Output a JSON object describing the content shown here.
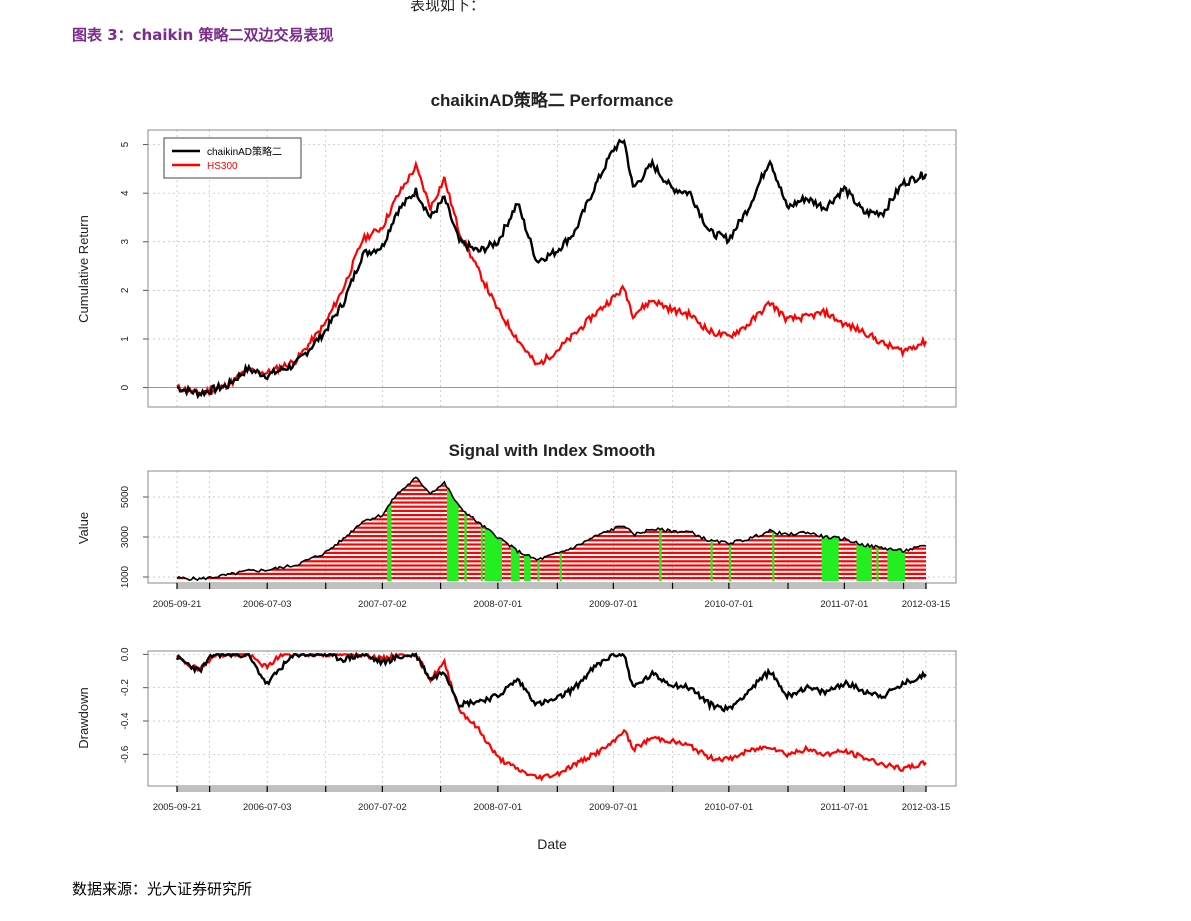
{
  "document": {
    "top_fragment": "表现如下：",
    "figure_caption": "图表 3：chaikin 策略二双边交易表现",
    "source_note": "数据来源：光大证券研究所"
  },
  "colors": {
    "strategy": "#000000",
    "index": "#ff0000",
    "signal_long": "#ff0000",
    "signal_short": "#22ee22",
    "grid": "#bbbbbb",
    "frame": "#888888",
    "date_band": "#c0c0c0"
  },
  "chart_data": [
    {
      "type": "line",
      "title": "chaikinAD策略二 Performance",
      "ylabel": "Cumulative Return",
      "xlabel": "",
      "ylim": [
        -0.4,
        5.3
      ],
      "yticks": [
        "0",
        "1",
        "2",
        "3",
        "4",
        "5"
      ],
      "legend_placement": "top-left",
      "grid": true,
      "x": [
        "2005-09-21",
        "2005-12-01",
        "2006-03-01",
        "2006-05-01",
        "2006-07-03",
        "2006-10-01",
        "2007-01-01",
        "2007-03-01",
        "2007-05-01",
        "2007-07-02",
        "2007-08-15",
        "2007-10-16",
        "2007-12-01",
        "2008-01-14",
        "2008-03-01",
        "2008-05-01",
        "2008-07-01",
        "2008-09-01",
        "2008-11-01",
        "2009-01-01",
        "2009-03-01",
        "2009-05-01",
        "2009-07-01",
        "2009-08-04",
        "2009-09-01",
        "2009-11-01",
        "2010-01-01",
        "2010-03-01",
        "2010-05-01",
        "2010-07-01",
        "2010-09-01",
        "2010-11-08",
        "2011-01-01",
        "2011-03-01",
        "2011-05-01",
        "2011-07-01",
        "2011-09-01",
        "2011-11-01",
        "2012-01-01",
        "2012-03-15"
      ],
      "series": [
        {
          "name": "chaikinAD策略二",
          "values": [
            0.0,
            -0.12,
            0.05,
            0.38,
            0.25,
            0.48,
            1.15,
            1.75,
            2.75,
            2.9,
            3.6,
            4.05,
            3.5,
            3.9,
            3.0,
            2.8,
            3.0,
            3.8,
            2.6,
            2.8,
            3.2,
            4.1,
            4.9,
            5.1,
            4.1,
            4.6,
            4.1,
            4.0,
            3.2,
            3.05,
            3.7,
            4.7,
            3.7,
            3.9,
            3.7,
            4.1,
            3.6,
            3.6,
            4.2,
            4.4
          ]
        },
        {
          "name": "HS300",
          "values": [
            0.0,
            -0.12,
            0.05,
            0.36,
            0.3,
            0.55,
            1.3,
            2.05,
            3.05,
            3.3,
            3.9,
            4.55,
            3.7,
            4.3,
            3.2,
            2.4,
            1.6,
            1.0,
            0.45,
            0.75,
            1.1,
            1.5,
            1.85,
            2.05,
            1.5,
            1.8,
            1.6,
            1.5,
            1.15,
            1.05,
            1.3,
            1.75,
            1.4,
            1.45,
            1.55,
            1.3,
            1.15,
            0.9,
            0.75,
            0.95
          ]
        }
      ]
    },
    {
      "type": "area",
      "title": "Signal with Index Smooth",
      "ylabel": "Value",
      "ylim": [
        700,
        6300
      ],
      "yticks": [
        "1000",
        "3000",
        "5000"
      ],
      "grid": true,
      "x": [
        "2005-09-21",
        "2005-12-01",
        "2006-03-01",
        "2006-05-01",
        "2006-07-03",
        "2006-10-01",
        "2007-01-01",
        "2007-03-01",
        "2007-05-01",
        "2007-07-02",
        "2007-08-15",
        "2007-10-16",
        "2007-12-01",
        "2008-01-14",
        "2008-03-01",
        "2008-05-01",
        "2008-07-01",
        "2008-09-01",
        "2008-11-01",
        "2009-01-01",
        "2009-03-01",
        "2009-05-01",
        "2009-07-01",
        "2009-08-04",
        "2009-09-01",
        "2009-11-01",
        "2010-01-01",
        "2010-03-01",
        "2010-05-01",
        "2010-07-01",
        "2010-09-01",
        "2010-11-08",
        "2011-01-01",
        "2011-03-01",
        "2011-05-01",
        "2011-07-01",
        "2011-09-01",
        "2011-11-01",
        "2012-01-01",
        "2012-03-15"
      ],
      "series": [
        {
          "name": "",
          "values": [
            950,
            900,
            1100,
            1300,
            1350,
            1600,
            2200,
            2900,
            3800,
            4100,
            5100,
            5950,
            5200,
            5700,
            4500,
            3700,
            3000,
            2300,
            1850,
            2150,
            2500,
            3000,
            3400,
            3600,
            3100,
            3400,
            3300,
            3250,
            2800,
            2700,
            2900,
            3300,
            3100,
            3250,
            3000,
            2900,
            2600,
            2450,
            2300,
            2550
          ]
        }
      ],
      "short_periods": [
        [
          "2007-07-17",
          "2007-07-31"
        ],
        [
          "2008-01-22",
          "2008-02-28"
        ],
        [
          "2008-03-17",
          "2008-03-25"
        ],
        [
          "2008-05-08",
          "2008-05-14"
        ],
        [
          "2008-05-20",
          "2008-07-14"
        ],
        [
          "2008-08-11",
          "2008-09-08"
        ],
        [
          "2008-09-22",
          "2008-10-13"
        ],
        [
          "2008-11-03",
          "2008-11-10"
        ],
        [
          "2009-01-12",
          "2009-01-19"
        ],
        [
          "2009-11-23",
          "2009-12-01"
        ],
        [
          "2010-05-04",
          "2010-05-11"
        ],
        [
          "2010-07-01",
          "2010-07-08"
        ],
        [
          "2010-11-15",
          "2010-11-22"
        ],
        [
          "2011-04-20",
          "2011-06-13"
        ],
        [
          "2011-08-08",
          "2011-09-26"
        ],
        [
          "2011-10-10",
          "2011-10-17"
        ],
        [
          "2011-11-14",
          "2012-01-09"
        ]
      ],
      "xticks": [
        "2005-09-21",
        "2006-07-03",
        "2007-07-02",
        "2008-07-01",
        "2009-07-01",
        "2010-07-01",
        "2011-07-01",
        "2012-03-15"
      ]
    },
    {
      "type": "line",
      "title": "",
      "ylabel": "Drawdown",
      "xlabel": "Date",
      "ylim": [
        -0.79,
        0.02
      ],
      "yticks": [
        "0.0",
        "-0.2",
        "-0.4",
        "-0.6"
      ],
      "grid": true,
      "x": [
        "2005-09-21",
        "2005-12-01",
        "2006-01-15",
        "2006-03-01",
        "2006-05-01",
        "2006-07-03",
        "2006-08-15",
        "2006-10-01",
        "2007-01-01",
        "2007-03-01",
        "2007-05-01",
        "2007-07-02",
        "2007-08-15",
        "2007-10-16",
        "2007-12-01",
        "2008-01-14",
        "2008-03-01",
        "2008-05-01",
        "2008-07-01",
        "2008-09-01",
        "2008-11-01",
        "2009-01-01",
        "2009-03-01",
        "2009-05-01",
        "2009-07-01",
        "2009-08-04",
        "2009-09-01",
        "2009-11-01",
        "2010-01-01",
        "2010-03-01",
        "2010-05-01",
        "2010-07-01",
        "2010-09-01",
        "2010-11-08",
        "2011-01-01",
        "2011-03-01",
        "2011-05-01",
        "2011-07-01",
        "2011-09-01",
        "2011-11-01",
        "2012-01-01",
        "2012-03-15"
      ],
      "series": [
        {
          "name": "chaikinAD策略二",
          "values": [
            -0.02,
            -0.1,
            0.0,
            0.0,
            0.0,
            -0.18,
            -0.08,
            0.0,
            0.0,
            -0.03,
            0.0,
            -0.05,
            -0.02,
            0.0,
            -0.15,
            -0.1,
            -0.3,
            -0.28,
            -0.25,
            -0.15,
            -0.3,
            -0.27,
            -0.2,
            -0.08,
            0.0,
            0.0,
            -0.2,
            -0.12,
            -0.18,
            -0.2,
            -0.3,
            -0.33,
            -0.22,
            -0.1,
            -0.25,
            -0.2,
            -0.23,
            -0.17,
            -0.22,
            -0.25,
            -0.18,
            -0.12
          ]
        },
        {
          "name": "HS300",
          "values": [
            -0.02,
            -0.1,
            0.0,
            0.0,
            0.0,
            -0.08,
            0.0,
            0.0,
            0.0,
            0.0,
            0.0,
            -0.03,
            0.0,
            0.0,
            -0.15,
            -0.05,
            -0.33,
            -0.45,
            -0.62,
            -0.69,
            -0.74,
            -0.72,
            -0.66,
            -0.6,
            -0.53,
            -0.45,
            -0.57,
            -0.5,
            -0.52,
            -0.55,
            -0.62,
            -0.63,
            -0.58,
            -0.55,
            -0.6,
            -0.57,
            -0.6,
            -0.58,
            -0.62,
            -0.66,
            -0.69,
            -0.65
          ]
        }
      ],
      "xticks": [
        "2005-09-21",
        "2006-07-03",
        "2007-07-02",
        "2008-07-01",
        "2009-07-01",
        "2010-07-01",
        "2011-07-01",
        "2012-03-15"
      ]
    }
  ]
}
